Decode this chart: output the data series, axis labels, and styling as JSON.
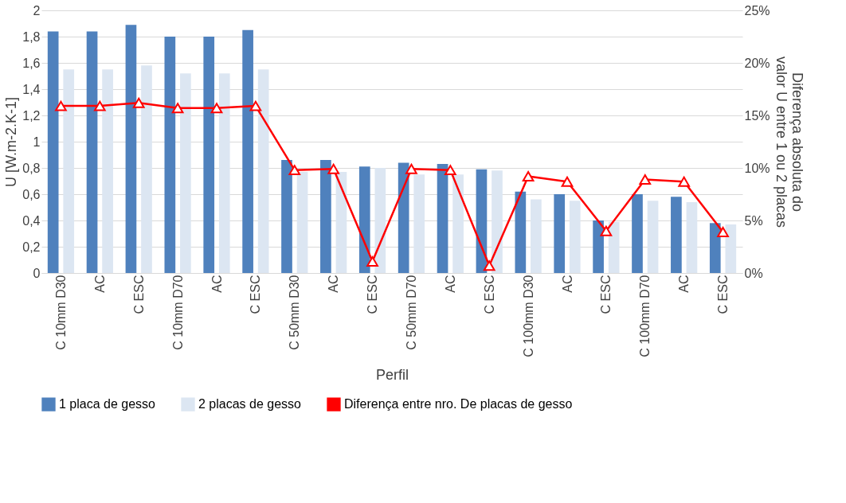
{
  "chart_data": {
    "type": "bar",
    "xlabel": "Perfil",
    "ylabel": "U [W.m-2.K-1]",
    "y2label": "Diferença absoluta do valor U entre 1 ou 2 placas",
    "categories": [
      "C 10mm D30",
      "AC",
      "C ESC",
      "C 10mm D70",
      "AC",
      "C ESC",
      "C 50mm D30",
      "AC",
      "C ESC",
      "C 50mm D70",
      "AC",
      "C ESC",
      "C 100mm D30",
      "AC",
      "C ESC",
      "C 100mm D70",
      "AC",
      "C ESC"
    ],
    "series": [
      {
        "name": "1 placa de gesso",
        "color": "#4f81bd",
        "values": [
          1.84,
          1.84,
          1.89,
          1.8,
          1.8,
          1.85,
          0.86,
          0.86,
          0.81,
          0.84,
          0.83,
          0.79,
          0.62,
          0.6,
          0.4,
          0.6,
          0.58,
          0.38
        ]
      },
      {
        "name": "2 placas de gesso",
        "color": "#dce6f2",
        "values": [
          1.55,
          1.55,
          1.58,
          1.52,
          1.52,
          1.55,
          0.77,
          0.77,
          0.8,
          0.75,
          0.75,
          0.78,
          0.56,
          0.55,
          0.39,
          0.55,
          0.54,
          0.37
        ]
      },
      {
        "name": "Diferença entre nro. De placas de gesso",
        "type": "line",
        "axis": "y2",
        "color": "#ff0000",
        "marker": "triangle",
        "values": [
          15.9,
          15.9,
          16.2,
          15.7,
          15.7,
          15.9,
          9.8,
          9.9,
          1.1,
          9.9,
          9.8,
          0.7,
          9.2,
          8.7,
          4.0,
          8.9,
          8.7,
          3.9
        ]
      }
    ],
    "ylim": [
      0,
      2
    ],
    "yticks": [
      0,
      {
        "value": 0.2,
        "label": "0,2"
      },
      {
        "value": 0.4,
        "label": "0,4"
      },
      {
        "value": 0.6,
        "label": "0,6"
      },
      {
        "value": 0.8,
        "label": "0,8"
      },
      1,
      {
        "value": 1.2,
        "label": "1,2"
      },
      {
        "value": 1.4,
        "label": "1,4"
      },
      {
        "value": 1.6,
        "label": "1,6"
      },
      {
        "value": 1.8,
        "label": "1,8"
      },
      2
    ],
    "y2lim": [
      0,
      25
    ],
    "y2ticks": [
      {
        "value": 0,
        "label": "0%"
      },
      {
        "value": 5,
        "label": "5%"
      },
      {
        "value": 10,
        "label": "10%"
      },
      {
        "value": 15,
        "label": "15%"
      },
      {
        "value": 20,
        "label": "20%"
      },
      {
        "value": 25,
        "label": "25%"
      }
    ],
    "grid": "y",
    "legend": "bottom"
  }
}
